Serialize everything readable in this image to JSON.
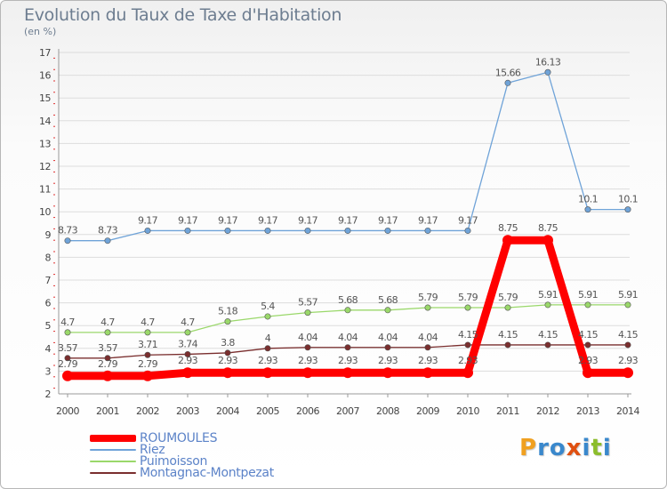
{
  "title": "Evolution du Taux de Taxe d'Habitation",
  "subtitle": "(en %)",
  "logo": {
    "text": "Proxiti",
    "letters": [
      {
        "ch": "P",
        "color": "#f0a020"
      },
      {
        "ch": "r",
        "color": "#3a88cc"
      },
      {
        "ch": "o",
        "color": "#3a88cc"
      },
      {
        "ch": "x",
        "color": "#e05010"
      },
      {
        "ch": "i",
        "color": "#3a88cc"
      },
      {
        "ch": "t",
        "color": "#8cbd2c"
      },
      {
        "ch": "i",
        "color": "#3a88cc"
      }
    ]
  },
  "chart_data": {
    "type": "line",
    "x": [
      "2000",
      "2001",
      "2002",
      "2003",
      "2004",
      "2005",
      "2006",
      "2007",
      "2008",
      "2009",
      "2010",
      "2011",
      "2012",
      "2013",
      "2014"
    ],
    "y_ticks": [
      "2",
      "3",
      "4",
      "5",
      "6",
      "7",
      "8",
      "9",
      "10",
      "11",
      "12",
      "13",
      "14",
      "15",
      "16",
      "17"
    ],
    "ylim": [
      2,
      17
    ],
    "grid": "horizontal",
    "legend_position": "bottom-left",
    "series": [
      {
        "name": "ROUMOULES",
        "color": "#ff0000",
        "values": [
          2.79,
          2.79,
          2.79,
          2.93,
          2.93,
          2.93,
          2.93,
          2.93,
          2.93,
          2.93,
          2.93,
          8.75,
          8.75,
          2.93,
          2.93
        ],
        "labels": [
          "2.79",
          "2.79",
          "2.79",
          "2.93",
          "2.93",
          "2.93",
          "2.93",
          "2.93",
          "2.93",
          "2.93",
          "2.93",
          "8.75",
          "8.75",
          "2.93",
          "2.93"
        ]
      },
      {
        "name": "Riez",
        "color": "#6fa3d8",
        "values": [
          8.73,
          8.73,
          9.17,
          9.17,
          9.17,
          9.17,
          9.17,
          9.17,
          9.17,
          9.17,
          9.17,
          15.66,
          16.13,
          10.1,
          10.1
        ],
        "labels": [
          "8.73",
          "8.73",
          "9.17",
          "9.17",
          "9.17",
          "9.17",
          "9.17",
          "9.17",
          "9.17",
          "9.17",
          "9.17",
          "15.66",
          "16.13",
          "10.1",
          "10.1"
        ]
      },
      {
        "name": "Puimoisson",
        "color": "#9ad86a",
        "values": [
          4.7,
          4.7,
          4.7,
          4.7,
          5.18,
          5.4,
          5.57,
          5.68,
          5.68,
          5.79,
          5.79,
          5.79,
          5.91,
          5.91,
          5.91
        ],
        "labels": [
          "4.7",
          "4.7",
          "4.7",
          "4.7",
          "5.18",
          "5.4",
          "5.57",
          "5.68",
          "5.68",
          "5.79",
          "5.79",
          "5.79",
          "5.91",
          "5.91",
          "5.91"
        ]
      },
      {
        "name": "Montagnac-Montpezat",
        "color": "#7a2e2e",
        "values": [
          3.57,
          3.57,
          3.71,
          3.74,
          3.8,
          4.0,
          4.04,
          4.04,
          4.04,
          4.04,
          4.15,
          4.15,
          4.15,
          4.15,
          4.15
        ],
        "labels": [
          "3.57",
          "3.57",
          "3.71",
          "3.74",
          "3.8",
          "4",
          "4.04",
          "4.04",
          "4.04",
          "4.04",
          "4.15",
          "4.15",
          "4.15",
          "4.15",
          "4.15"
        ]
      }
    ]
  }
}
